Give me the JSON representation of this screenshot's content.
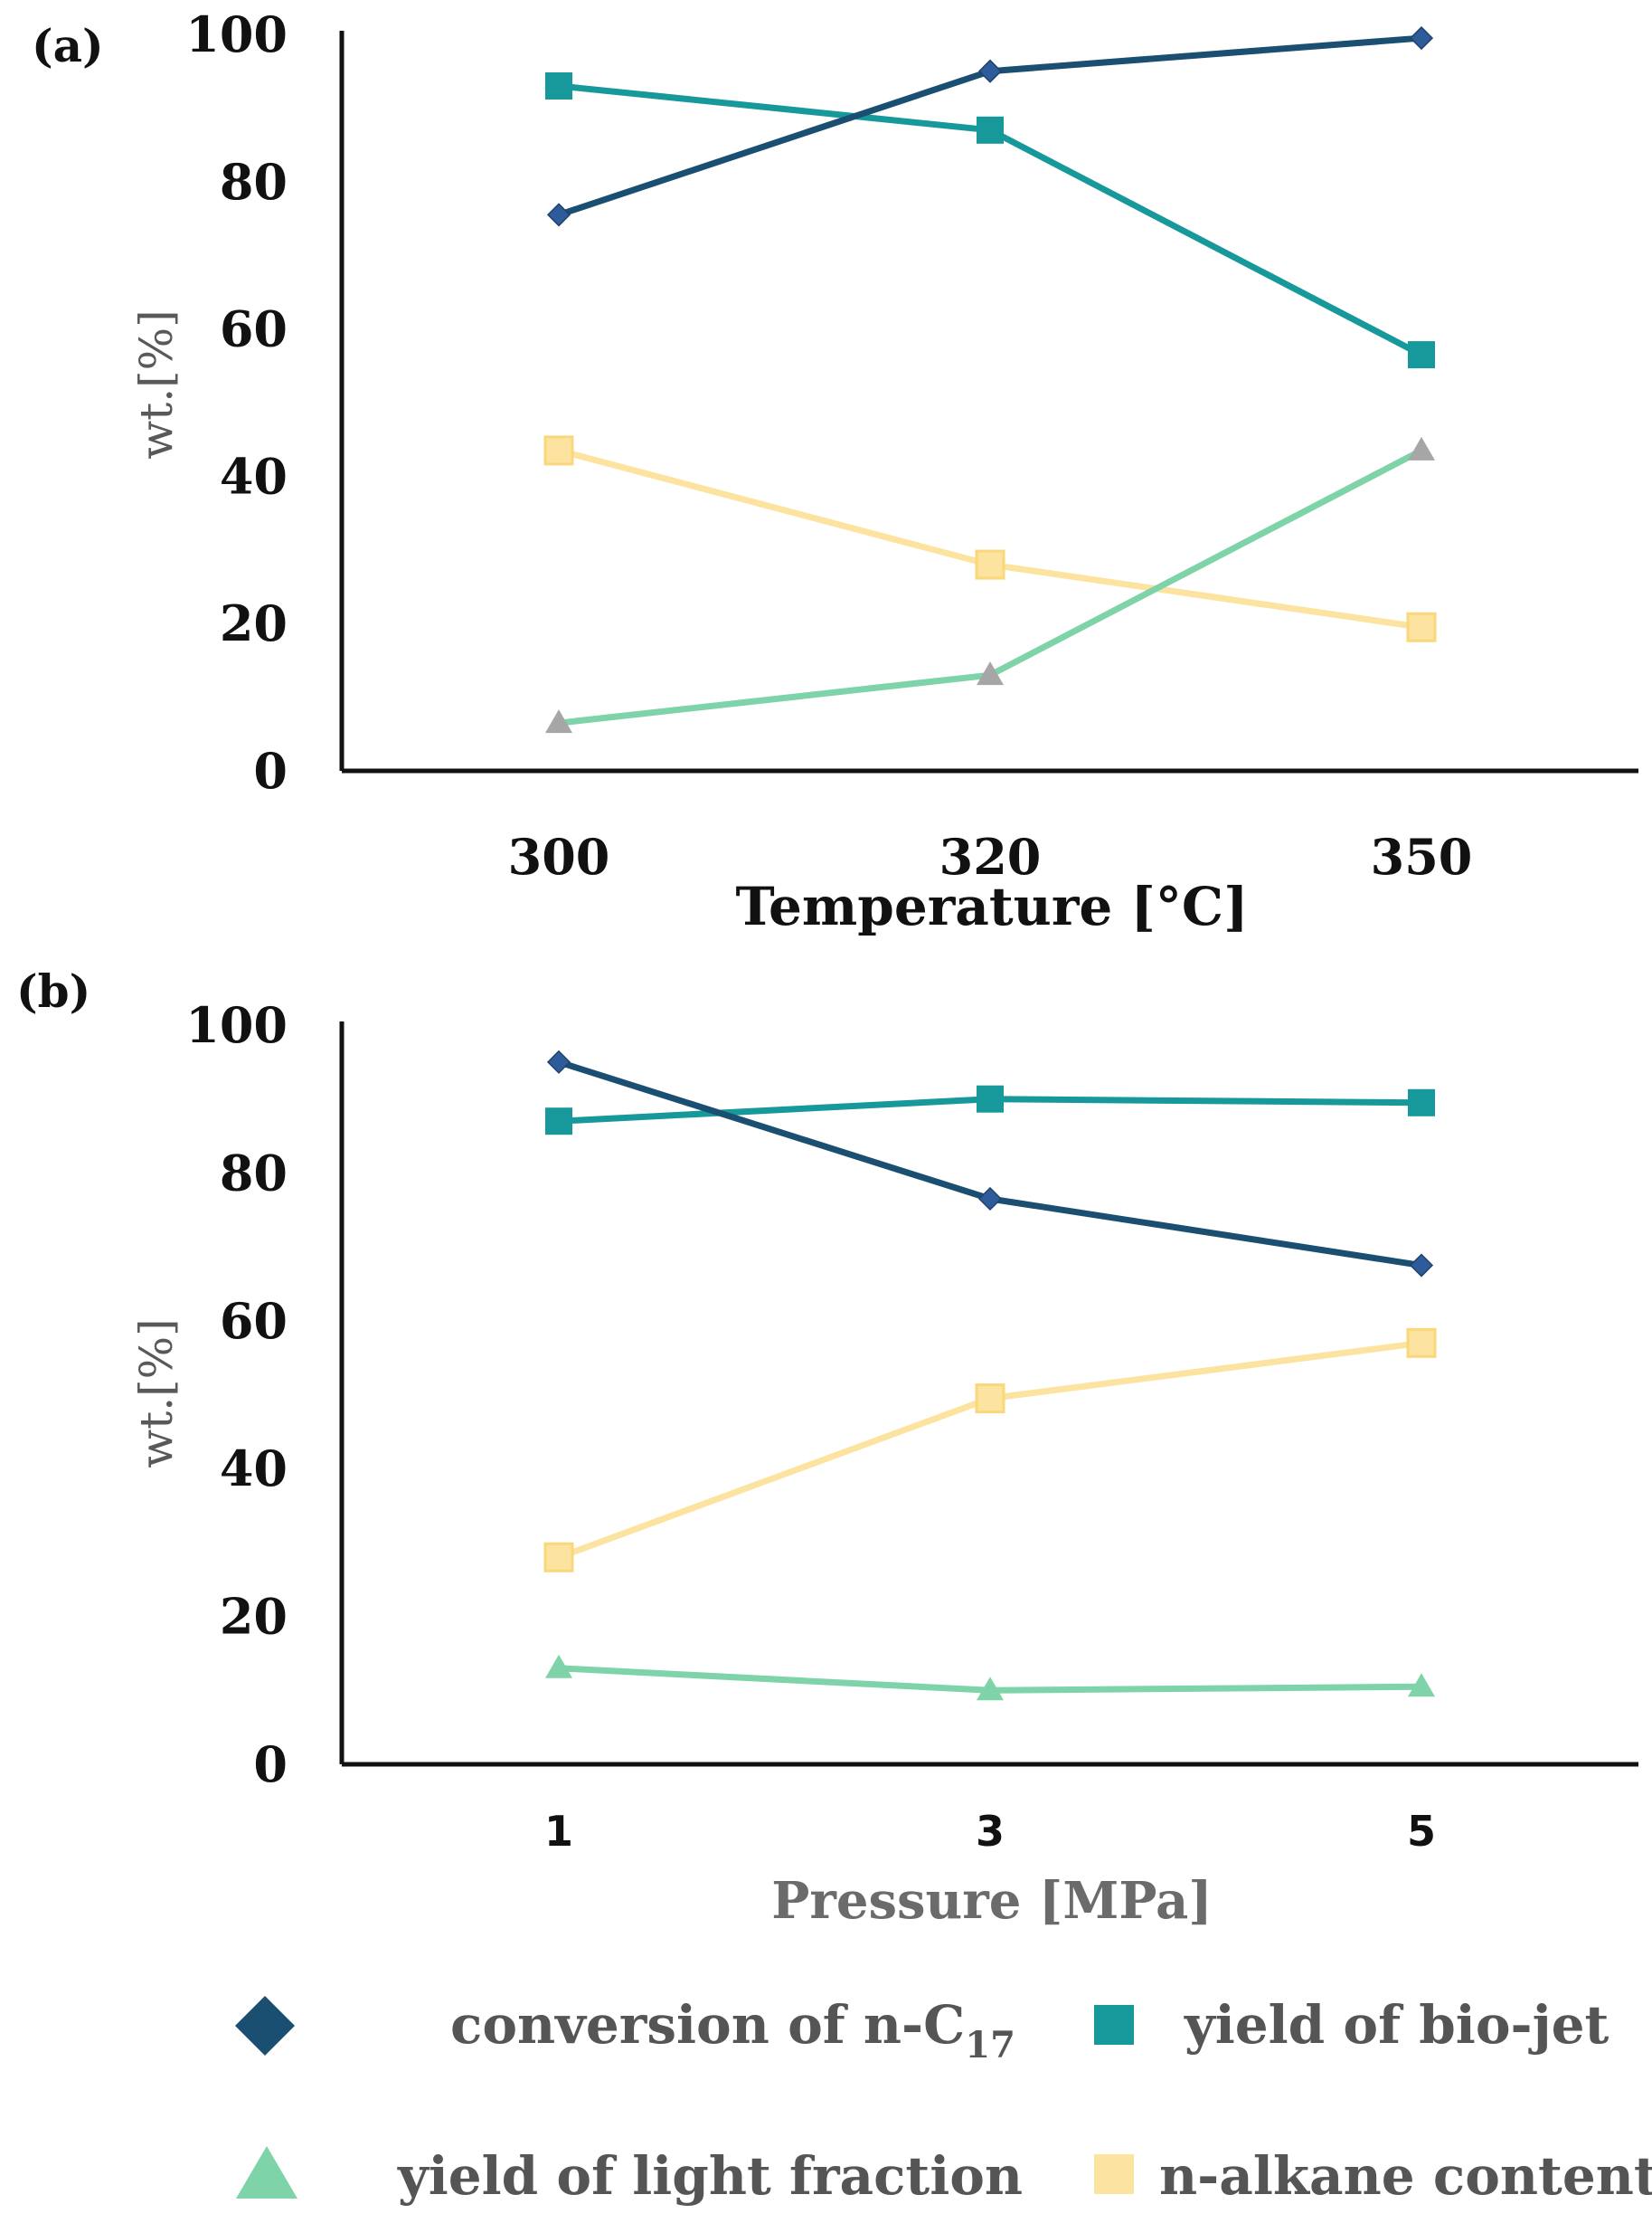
{
  "colors": {
    "conversion": "#1b4f72",
    "conversion_marker": "#2e5c9a",
    "biojet": "#17999b",
    "light": "#7fd3a8",
    "light_marker_a": "#a6a6a6",
    "alkane": "#fce3a0",
    "alkane_marker": "#f9d77a",
    "axis": "#111111"
  },
  "legend": {
    "conversion_label": "conversion of n-C",
    "conversion_sub": "17",
    "biojet_label": "yield of bio-jet",
    "light_label": "yield of light fraction",
    "alkane_label": "n-alkane content"
  },
  "chart_data": [
    {
      "type": "line",
      "panel_label": "(a)",
      "categories": [
        "300",
        "320",
        "350"
      ],
      "xlabel": "Temperature [°C]",
      "ylabel": "wt.[%]",
      "ylim": [
        0,
        100
      ],
      "yticks": [
        "0",
        "20",
        "40",
        "60",
        "80",
        "100"
      ],
      "series": [
        {
          "name": "conversion of n-C17",
          "values": [
            75.5,
            95,
            99.5
          ]
        },
        {
          "name": "yield of bio-jet",
          "values": [
            93,
            87,
            56.5
          ]
        },
        {
          "name": "yield of light fraction",
          "values": [
            6.5,
            13,
            43.5
          ]
        },
        {
          "name": "n-alkane content",
          "values": [
            43.5,
            28,
            19.5
          ]
        }
      ]
    },
    {
      "type": "line",
      "panel_label": "(b)",
      "categories": [
        "1",
        "3",
        "5"
      ],
      "xlabel": "Pressure [MPa]",
      "ylabel": "wt.[%]",
      "ylim": [
        0,
        100
      ],
      "yticks": [
        "0",
        "20",
        "40",
        "60",
        "80",
        "100"
      ],
      "series": [
        {
          "name": "conversion of n-C17",
          "values": [
            95,
            76.5,
            67.5
          ]
        },
        {
          "name": "yield of bio-jet",
          "values": [
            87,
            90,
            89.5
          ]
        },
        {
          "name": "yield of light fraction",
          "values": [
            13,
            10,
            10.5
          ]
        },
        {
          "name": "n-alkane content",
          "values": [
            28,
            49.5,
            57
          ]
        }
      ]
    }
  ]
}
